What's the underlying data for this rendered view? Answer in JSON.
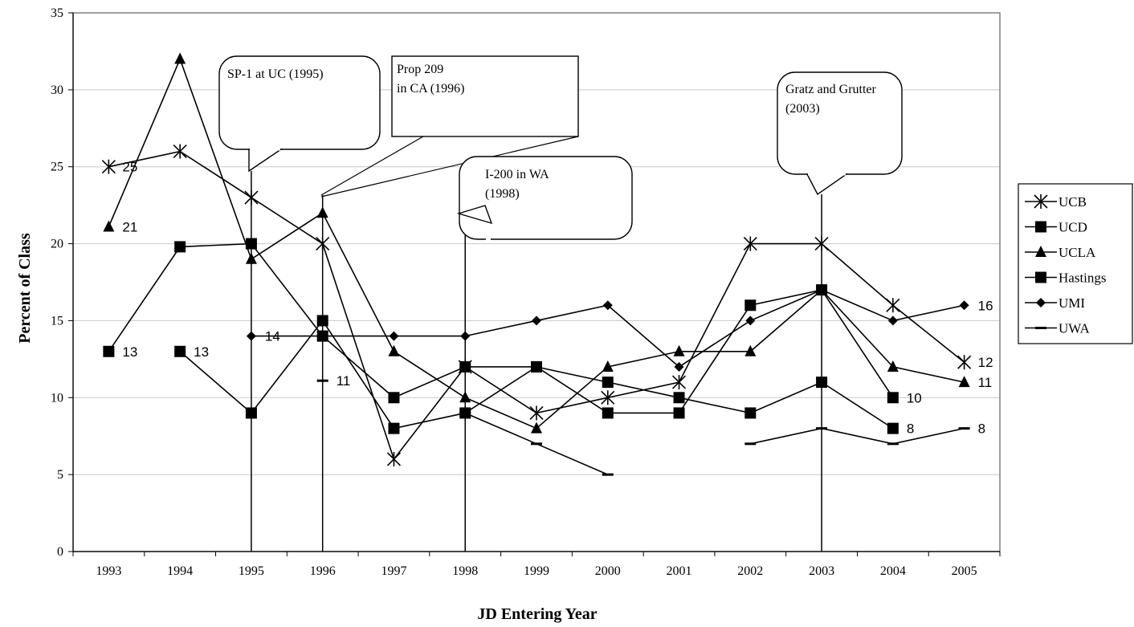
{
  "chart_data": {
    "type": "line",
    "xlabel": "JD Entering Year",
    "ylabel": "Percent of Class",
    "ylim": [
      0,
      35
    ],
    "yticks": [
      0,
      5,
      10,
      15,
      20,
      25,
      30,
      35
    ],
    "categories": [
      "1993",
      "1994",
      "1995",
      "1996",
      "1997",
      "1998",
      "1999",
      "2000",
      "2001",
      "2002",
      "2003",
      "2004",
      "2005"
    ],
    "grid": "horizontal",
    "legend_position": "right",
    "series": [
      {
        "name": "UCB",
        "marker": "asterisk",
        "values": [
          25,
          26,
          23,
          20,
          6,
          12,
          9,
          10,
          11,
          20,
          20,
          16,
          12.3
        ]
      },
      {
        "name": "UCD",
        "marker": "square",
        "values": [
          13,
          19.8,
          20,
          14,
          10,
          12,
          12,
          9,
          9,
          16,
          17,
          10,
          null
        ]
      },
      {
        "name": "UCLA",
        "marker": "triangle",
        "values": [
          21.1,
          32,
          19,
          22,
          13,
          10,
          8,
          12,
          13,
          13,
          17,
          12,
          11
        ]
      },
      {
        "name": "Hastings",
        "marker": "square",
        "values": [
          null,
          13,
          9,
          15,
          8,
          9,
          12,
          11,
          10,
          9,
          11,
          8,
          null
        ]
      },
      {
        "name": "UMI",
        "marker": "diamond",
        "values": [
          null,
          null,
          14,
          14,
          14,
          14,
          15,
          16,
          12,
          15,
          17,
          15,
          16
        ]
      },
      {
        "name": "UWA",
        "marker": "dash",
        "values": [
          null,
          null,
          null,
          11.1,
          null,
          9,
          7,
          5,
          null,
          7,
          8,
          7,
          8
        ]
      }
    ],
    "data_labels": [
      {
        "series": "UCB",
        "category": "1993",
        "text": "25"
      },
      {
        "series": "UCLA",
        "category": "1993",
        "text": "21"
      },
      {
        "series": "UCD",
        "category": "1993",
        "text": "13"
      },
      {
        "series": "Hastings",
        "category": "1994",
        "text": "13"
      },
      {
        "series": "UMI",
        "category": "1995",
        "text": "14"
      },
      {
        "series": "UWA",
        "category": "1996",
        "text": "11"
      },
      {
        "series": "UMI",
        "category": "2005",
        "text": "16"
      },
      {
        "series": "UCB",
        "category": "2005",
        "text": "12"
      },
      {
        "series": "UCLA",
        "category": "2005",
        "text": "11"
      },
      {
        "series": "UCD",
        "category": "2004",
        "text": "10"
      },
      {
        "series": "Hastings",
        "category": "2004",
        "text": "8"
      },
      {
        "series": "UWA",
        "category": "2005",
        "text": "8"
      }
    ],
    "annotations": [
      {
        "lines": [
          "SP-1 at UC (1995)"
        ],
        "category": "1995",
        "shape": "rounded"
      },
      {
        "lines": [
          "Prop 209",
          "in CA (1996)"
        ],
        "category": "1996",
        "shape": "rect"
      },
      {
        "lines": [
          "I-200 in WA",
          "(1998)"
        ],
        "category": "1998",
        "shape": "rounded"
      },
      {
        "lines": [
          "Gratz and Grutter",
          "(2003)"
        ],
        "category": "2003",
        "shape": "rounded"
      }
    ]
  }
}
